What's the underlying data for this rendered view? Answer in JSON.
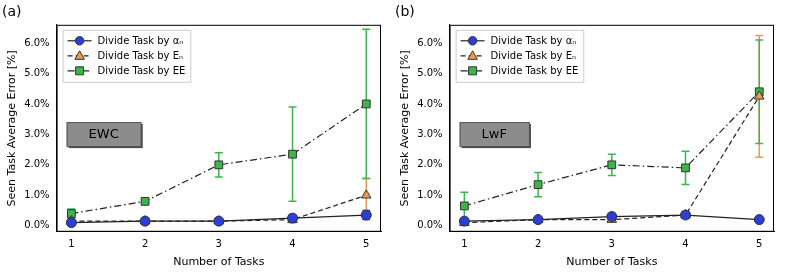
{
  "chart_data": [
    {
      "type": "line",
      "title": "(a)",
      "annotation": "EWC",
      "x_label": "Number of Tasks",
      "y_label": "Seen Task Average Error [%]",
      "x": [
        1,
        2,
        3,
        4,
        5
      ],
      "xlim": [
        0.8,
        5.2
      ],
      "xticks": [
        1,
        2,
        3,
        4,
        5
      ],
      "ylim": [
        -0.2,
        6.6
      ],
      "yticks": [
        {
          "value": 0,
          "label": "0.0%"
        },
        {
          "value": 1,
          "label": "1.0%"
        },
        {
          "value": 2,
          "label": "2.0%"
        },
        {
          "value": 3,
          "label": "3.0%"
        },
        {
          "value": 4,
          "label": "4.0%"
        },
        {
          "value": 5,
          "label": "5.0%"
        },
        {
          "value": 6,
          "label": "6.0%"
        }
      ],
      "grid": false,
      "legend": "upper left",
      "series": [
        {
          "name": "Divide Task by αₙ",
          "color": "#2b3fd4",
          "marker": "circle",
          "line_style": "solid",
          "values": [
            0.1,
            0.15,
            0.15,
            0.25,
            0.35
          ],
          "errors": [
            0.05,
            0.05,
            0.05,
            0.1,
            0.15
          ]
        },
        {
          "name": "Divide Task by Eₙ",
          "color": "#ec9a4e",
          "marker": "triangle",
          "line_style": "dashed",
          "values": [
            0.15,
            0.15,
            0.15,
            0.2,
            1.0
          ],
          "errors": [
            0.05,
            0.05,
            0.05,
            0.1,
            0.55
          ]
        },
        {
          "name": "Divide Task by EE",
          "color": "#3cb54a",
          "marker": "square",
          "line_style": "dashdot",
          "values": [
            0.4,
            0.8,
            2.0,
            2.35,
            4.0
          ],
          "errors": [
            0.15,
            0.05,
            0.4,
            1.55,
            2.45
          ]
        }
      ]
    },
    {
      "type": "line",
      "title": "(b)",
      "annotation": "LwF",
      "x_label": "Number of Tasks",
      "y_label": "Seen Task Average Error [%]",
      "x": [
        1,
        2,
        3,
        4,
        5
      ],
      "xlim": [
        0.8,
        5.2
      ],
      "xticks": [
        1,
        2,
        3,
        4,
        5
      ],
      "ylim": [
        -0.2,
        6.6
      ],
      "yticks": [
        {
          "value": 0,
          "label": "0.0%"
        },
        {
          "value": 1,
          "label": "1.0%"
        },
        {
          "value": 2,
          "label": "2.0%"
        },
        {
          "value": 3,
          "label": "3.0%"
        },
        {
          "value": 4,
          "label": "4.0%"
        },
        {
          "value": 5,
          "label": "5.0%"
        },
        {
          "value": 6,
          "label": "6.0%"
        }
      ],
      "grid": false,
      "legend": "upper left",
      "series": [
        {
          "name": "Divide Task by αₙ",
          "color": "#2b3fd4",
          "marker": "circle",
          "line_style": "solid",
          "values": [
            0.15,
            0.2,
            0.3,
            0.35,
            0.2
          ],
          "errors": [
            0.05,
            0.05,
            0.1,
            0.1,
            0.05
          ]
        },
        {
          "name": "Divide Task by Eₙ",
          "color": "#ec9a4e",
          "marker": "triangle",
          "line_style": "dashed",
          "values": [
            0.1,
            0.2,
            0.2,
            0.35,
            4.25
          ],
          "errors": [
            0.05,
            0.05,
            0.05,
            0.05,
            2.0
          ]
        },
        {
          "name": "Divide Task by EE",
          "color": "#3cb54a",
          "marker": "square",
          "line_style": "dashdot",
          "values": [
            0.65,
            1.35,
            2.0,
            1.9,
            4.4
          ],
          "errors": [
            0.45,
            0.4,
            0.35,
            0.55,
            1.7
          ]
        }
      ]
    }
  ]
}
